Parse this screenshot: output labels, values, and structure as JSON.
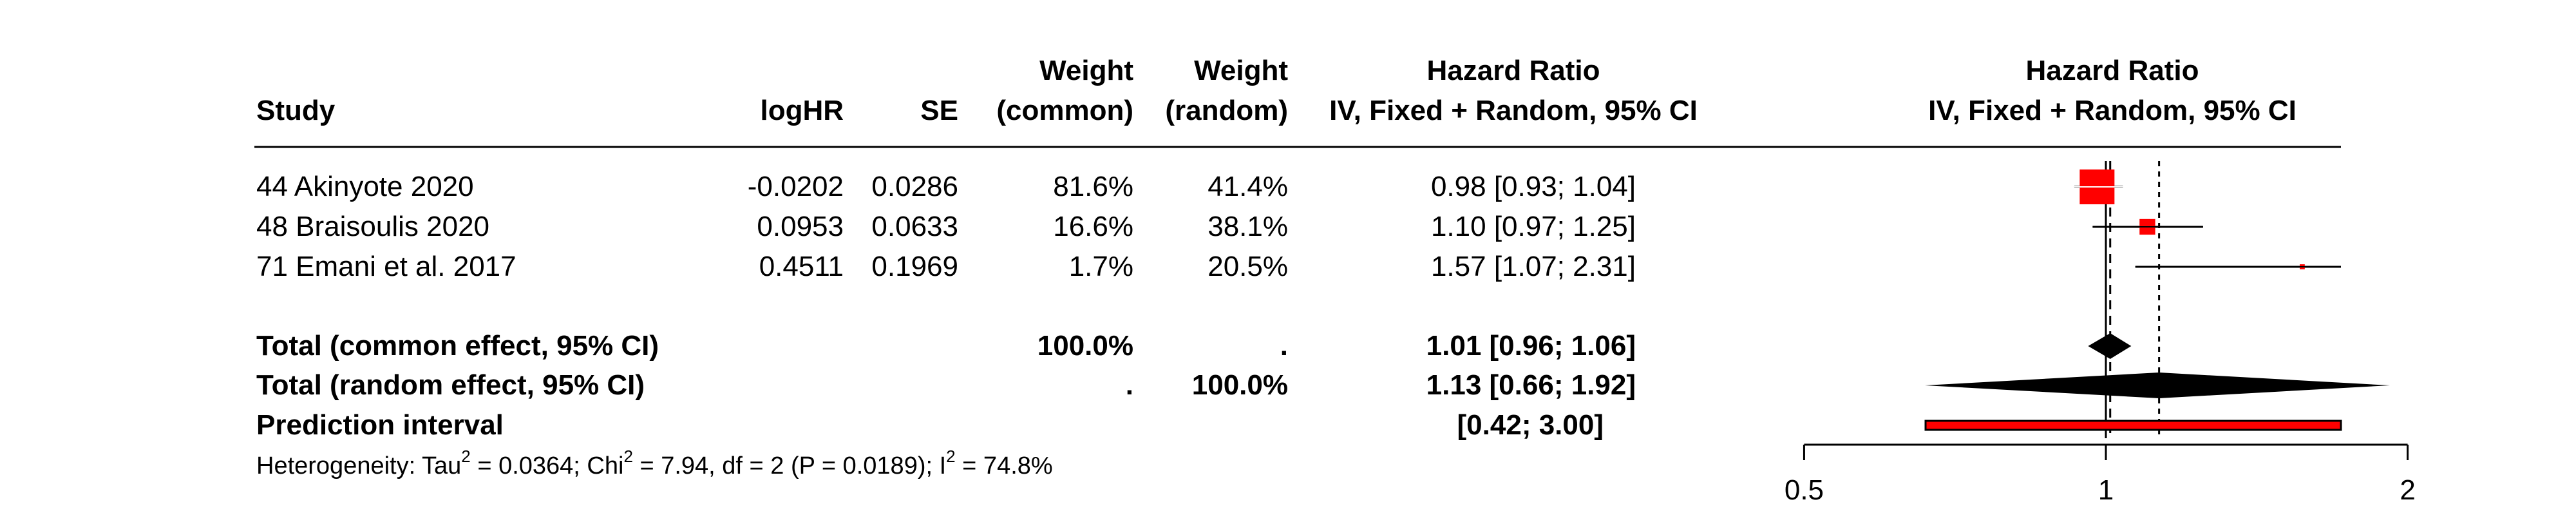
{
  "headers": {
    "study": "Study",
    "loghr": "logHR",
    "se": "SE",
    "weight_common_1": "Weight",
    "weight_common_2": "(common)",
    "weight_random_1": "Weight",
    "weight_random_2": "(random)",
    "hr_1": "Hazard Ratio",
    "hr_2": "IV, Fixed + Random, 95% CI",
    "plot_1": "Hazard Ratio",
    "plot_2": "IV, Fixed + Random, 95% CI"
  },
  "studies": [
    {
      "study": "44 Akinyote 2020",
      "loghr": "-0.0202",
      "se": "0.0286",
      "w_common": "81.6%",
      "w_random": "41.4%",
      "ci_text": "0.98 [0.93; 1.04]"
    },
    {
      "study": "48 Braisoulis 2020",
      "loghr": "0.0953",
      "se": "0.0633",
      "w_common": "16.6%",
      "w_random": "38.1%",
      "ci_text": "1.10 [0.97; 1.25]"
    },
    {
      "study": "71 Emani et al. 2017",
      "loghr": "0.4511",
      "se": "0.1969",
      "w_common": "1.7%",
      "w_random": "20.5%",
      "ci_text": "1.57 [1.07; 2.31]"
    }
  ],
  "totals": {
    "common": {
      "label": "Total (common effect, 95% CI)",
      "w_common": "100.0%",
      "w_random": ".",
      "ci_text": "1.01 [0.96; 1.06]"
    },
    "random": {
      "label": "Total (random effect, 95% CI)",
      "w_common": ".",
      "w_random": "100.0%",
      "ci_text": "1.13 [0.66; 1.92]"
    },
    "prediction": {
      "label": "Prediction interval",
      "ci_text": "[0.42; 3.00]"
    }
  },
  "heterogeneity": {
    "prefix": "Heterogeneity: Tau",
    "tau_sup": "2",
    "mid1": " = 0.0364; Chi",
    "chi_sup": "2",
    "mid2": " = 7.94, df = 2 (P = 0.0189); I",
    "i_sup": "2",
    "suffix": " = 74.8%"
  },
  "colors": {
    "square": "#ff0000",
    "diamond": "#000000",
    "prediction_fill": "#ff0000"
  },
  "chart_data": {
    "type": "forest",
    "scale": "log",
    "xlim": [
      0.5,
      2
    ],
    "ticks": [
      0.5,
      1,
      2
    ],
    "tick_labels": [
      "0.5",
      "1",
      "2"
    ],
    "null_line": 1,
    "studies": [
      {
        "name": "44 Akinyote 2020",
        "hr": 0.98,
        "lower": 0.93,
        "upper": 1.04,
        "weight_common": 81.6
      },
      {
        "name": "48 Braisoulis 2020",
        "hr": 1.1,
        "lower": 0.97,
        "upper": 1.25,
        "weight_common": 16.6
      },
      {
        "name": "71 Emani et al. 2017",
        "hr": 1.57,
        "lower": 1.07,
        "upper": 2.31,
        "weight_common": 1.7
      }
    ],
    "common_effect": {
      "hr": 1.01,
      "lower": 0.96,
      "upper": 1.06
    },
    "random_effect": {
      "hr": 1.13,
      "lower": 0.66,
      "upper": 1.92
    },
    "prediction_interval": {
      "lower": 0.42,
      "upper": 3.0
    }
  }
}
